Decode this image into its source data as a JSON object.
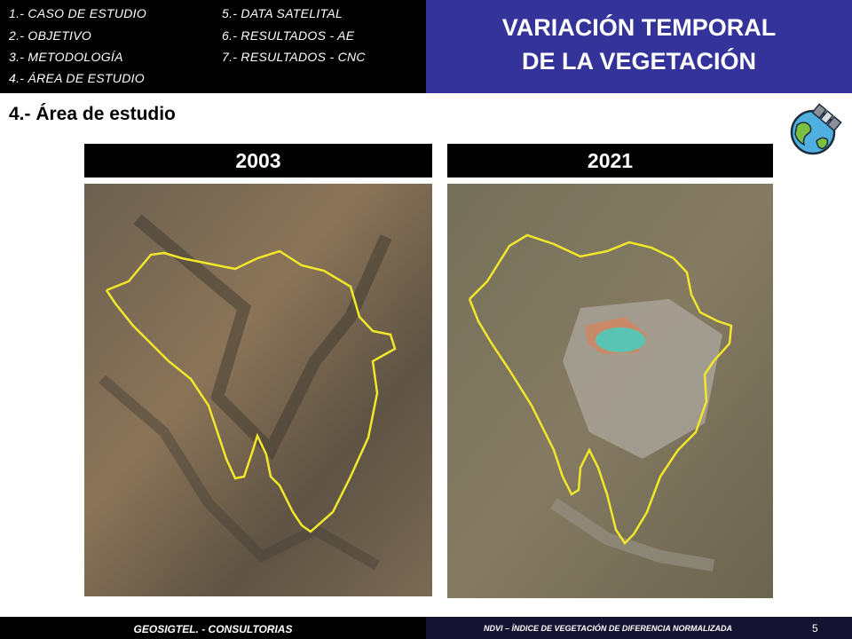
{
  "header": {
    "nav": [
      "1.- CASO DE ESTUDIO",
      "2.- OBJETIVO",
      "3.- METODOLOGÍA",
      "4.- ÁREA DE ESTUDIO",
      "5.- DATA SATELITAL",
      "6.- RESULTADOS - AE",
      "7.- RESULTADOS - CNC"
    ],
    "title": [
      "VARIACIÓN TEMPORAL",
      "DE LA VEGETACIÓN"
    ]
  },
  "section": "4.- Área de estudio",
  "panels": [
    {
      "label": "2003"
    },
    {
      "label": "2021"
    }
  ],
  "footer": {
    "left": "GEOSIGTEL. - CONSULTORIAS",
    "right": "NDVI – ÍNDICE DE VEGETACIÓN DE DIFERENCIA NORMALIZADA",
    "page": "5"
  }
}
